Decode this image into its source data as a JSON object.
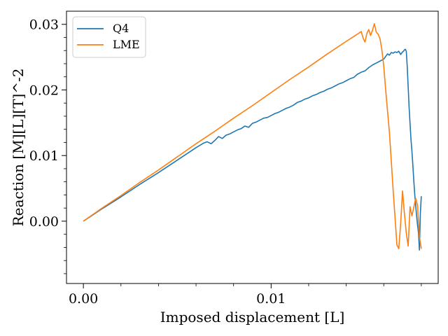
{
  "chart_data": {
    "type": "line",
    "title": "",
    "xlabel": "Imposed displacement [L]",
    "ylabel": "Reaction [M][L][T]^-2",
    "xlim": [
      -0.0009,
      0.0189
    ],
    "ylim": [
      -0.0095,
      0.032
    ],
    "xticks": [
      {
        "value": 0.0,
        "label": "0.00"
      },
      {
        "value": 0.01,
        "label": "0.01"
      }
    ],
    "xminor": [
      0.002,
      0.004,
      0.006,
      0.008,
      0.012,
      0.014,
      0.016,
      0.018
    ],
    "yticks": [
      {
        "value": 0.0,
        "label": "0.00"
      },
      {
        "value": 0.01,
        "label": "0.01"
      },
      {
        "value": 0.02,
        "label": "0.02"
      },
      {
        "value": 0.03,
        "label": "0.03"
      }
    ],
    "yminor": [
      -0.008,
      -0.006,
      -0.004,
      -0.002,
      0.002,
      0.004,
      0.006,
      0.008,
      0.012,
      0.014,
      0.016,
      0.018,
      0.022,
      0.024,
      0.026,
      0.028
    ],
    "grid": false,
    "legend_position": "top-left",
    "series": [
      {
        "name": "Q4",
        "color": "#1f77b4",
        "x": [
          0.0,
          0.001,
          0.002,
          0.003,
          0.004,
          0.005,
          0.006,
          0.0064,
          0.0066,
          0.0068,
          0.007,
          0.0072,
          0.0074,
          0.0076,
          0.0078,
          0.008,
          0.0082,
          0.0084,
          0.0086,
          0.0088,
          0.009,
          0.0092,
          0.0094,
          0.0096,
          0.0098,
          0.01,
          0.0102,
          0.0104,
          0.0106,
          0.0108,
          0.011,
          0.0112,
          0.0114,
          0.0116,
          0.0118,
          0.012,
          0.0122,
          0.0124,
          0.0126,
          0.0128,
          0.013,
          0.0132,
          0.0134,
          0.0136,
          0.0138,
          0.014,
          0.0142,
          0.0144,
          0.0146,
          0.0148,
          0.015,
          0.0152,
          0.0154,
          0.0156,
          0.0158,
          0.016,
          0.0161,
          0.0162,
          0.0163,
          0.0164,
          0.0165,
          0.0166,
          0.0167,
          0.0168,
          0.0169,
          0.01695,
          0.017,
          0.01705,
          0.0171,
          0.01715,
          0.0172,
          0.01725,
          0.0173,
          0.01735,
          0.0174,
          0.01745,
          0.0175,
          0.01755,
          0.0176,
          0.01765,
          0.0177,
          0.01775,
          0.0178,
          0.01785,
          0.0179,
          0.01795,
          0.018
        ],
        "y": [
          0.0,
          0.0019,
          0.0037,
          0.0056,
          0.0074,
          0.0093,
          0.0112,
          0.0119,
          0.0121,
          0.0118,
          0.0123,
          0.0129,
          0.0126,
          0.0131,
          0.0133,
          0.0136,
          0.0139,
          0.0141,
          0.0145,
          0.0143,
          0.0149,
          0.0151,
          0.0154,
          0.0157,
          0.0158,
          0.0161,
          0.0164,
          0.0166,
          0.0169,
          0.0172,
          0.0174,
          0.0177,
          0.0181,
          0.0183,
          0.0186,
          0.0188,
          0.0191,
          0.0193,
          0.0196,
          0.0198,
          0.0201,
          0.0203,
          0.0206,
          0.0209,
          0.0211,
          0.0214,
          0.0217,
          0.0219,
          0.0224,
          0.0227,
          0.0229,
          0.0234,
          0.0238,
          0.0241,
          0.0244,
          0.0247,
          0.0251,
          0.0255,
          0.0253,
          0.0257,
          0.0256,
          0.0258,
          0.0257,
          0.0259,
          0.0254,
          0.0256,
          0.0258,
          0.0259,
          0.0261,
          0.0262,
          0.0259,
          0.0236,
          0.0205,
          0.0174,
          0.0149,
          0.0125,
          0.0107,
          0.0085,
          0.0062,
          0.0041,
          0.0024,
          0.0008,
          -0.0006,
          -0.0018,
          -0.0044,
          0.0012,
          0.0038
        ]
      },
      {
        "name": "LME",
        "color": "#ff7f0e",
        "x": [
          0.0,
          0.001,
          0.002,
          0.003,
          0.004,
          0.005,
          0.006,
          0.007,
          0.008,
          0.009,
          0.01,
          0.011,
          0.012,
          0.013,
          0.014,
          0.0147,
          0.0148,
          0.0149,
          0.015,
          0.0151,
          0.0152,
          0.0153,
          0.0154,
          0.0155,
          0.0156,
          0.0157,
          0.0158,
          0.0159,
          0.016,
          0.0161,
          0.0162,
          0.0163,
          0.0164,
          0.0165,
          0.0166,
          0.0167,
          0.0168,
          0.0169,
          0.017,
          0.0171,
          0.0172,
          0.0173,
          0.0174,
          0.0175,
          0.0176,
          0.0177,
          0.0178,
          0.0179,
          0.018
        ],
        "y": [
          0.0,
          0.002,
          0.0039,
          0.0059,
          0.0078,
          0.0098,
          0.0118,
          0.0137,
          0.0157,
          0.0176,
          0.0196,
          0.0216,
          0.0235,
          0.0255,
          0.0274,
          0.0287,
          0.0289,
          0.0279,
          0.0273,
          0.0286,
          0.0292,
          0.0283,
          0.0291,
          0.0301,
          0.0288,
          0.0285,
          0.0278,
          0.0261,
          0.0236,
          0.0201,
          0.0168,
          0.0136,
          0.0092,
          0.0047,
          0.0006,
          -0.0036,
          -0.0042,
          -0.0004,
          0.0046,
          0.0012,
          -0.0018,
          -0.0038,
          0.0022,
          0.0008,
          0.0021,
          0.0035,
          0.0024,
          -0.0024,
          -0.0042
        ]
      }
    ]
  }
}
